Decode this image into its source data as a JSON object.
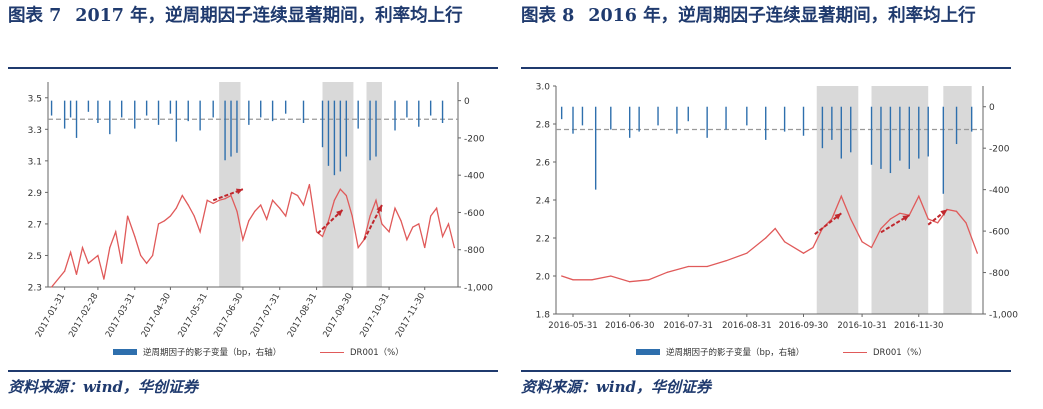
{
  "colors": {
    "title": "#1f3a6e",
    "bar": "#2e6fad",
    "line": "#e05a5a",
    "shade": "#d9d9d9",
    "arrow": "#c0272d",
    "dash": "#999999"
  },
  "source_text": "资料来源：wind，华创证券",
  "charts": [
    {
      "fig_label": "图表 7",
      "title": "2017 年，逆周期因子连续显著期间，利率均上行",
      "legend": {
        "bar": "逆周期因子的影子变量（bp，右轴）",
        "line": "DR001（%）"
      },
      "chart_data": {
        "type": "bar+line",
        "x_ticks": [
          "2017-01-31",
          "2017-02-28",
          "2017-03-31",
          "2017-04-30",
          "2017-05-31",
          "2017-06-30",
          "2017-07-31",
          "2017-08-31",
          "2017-09-30",
          "2017-10-31",
          "2017-11-30"
        ],
        "y_left": {
          "ticks": [
            "3.5",
            "3.3",
            "3.1",
            "2.9",
            "2.7",
            "2.5",
            "2.3"
          ],
          "range": [
            2.3,
            3.6
          ]
        },
        "y_right": {
          "ticks": [
            "0",
            "-200",
            "-400",
            "-600",
            "-800",
            "-1,000"
          ],
          "range": [
            -1000,
            100
          ]
        },
        "shaded_periods": [
          [
            "2017-06-10",
            "2017-06-28"
          ],
          [
            "2017-09-05",
            "2017-10-01"
          ],
          [
            "2017-10-12",
            "2017-10-25"
          ]
        ],
        "dashed_reference": -100,
        "series": [
          {
            "name": "DR001（%）",
            "type": "line",
            "values": [
              [
                "2017-01-20",
                2.3
              ],
              [
                "2017-01-31",
                2.4
              ],
              [
                "2017-02-05",
                2.52
              ],
              [
                "2017-02-10",
                2.38
              ],
              [
                "2017-02-15",
                2.55
              ],
              [
                "2017-02-20",
                2.45
              ],
              [
                "2017-02-28",
                2.5
              ],
              [
                "2017-03-05",
                2.35
              ],
              [
                "2017-03-10",
                2.55
              ],
              [
                "2017-03-15",
                2.65
              ],
              [
                "2017-03-20",
                2.45
              ],
              [
                "2017-03-25",
                2.75
              ],
              [
                "2017-03-31",
                2.62
              ],
              [
                "2017-04-05",
                2.5
              ],
              [
                "2017-04-10",
                2.45
              ],
              [
                "2017-04-15",
                2.5
              ],
              [
                "2017-04-20",
                2.7
              ],
              [
                "2017-04-25",
                2.72
              ],
              [
                "2017-04-30",
                2.75
              ],
              [
                "2017-05-05",
                2.8
              ],
              [
                "2017-05-10",
                2.88
              ],
              [
                "2017-05-15",
                2.82
              ],
              [
                "2017-05-20",
                2.75
              ],
              [
                "2017-05-25",
                2.65
              ],
              [
                "2017-05-31",
                2.85
              ],
              [
                "2017-06-05",
                2.83
              ],
              [
                "2017-06-10",
                2.85
              ],
              [
                "2017-06-15",
                2.86
              ],
              [
                "2017-06-20",
                2.88
              ],
              [
                "2017-06-25",
                2.78
              ],
              [
                "2017-06-30",
                2.6
              ],
              [
                "2017-07-05",
                2.72
              ],
              [
                "2017-07-10",
                2.78
              ],
              [
                "2017-07-15",
                2.82
              ],
              [
                "2017-07-20",
                2.73
              ],
              [
                "2017-07-25",
                2.85
              ],
              [
                "2017-07-31",
                2.8
              ],
              [
                "2017-08-05",
                2.75
              ],
              [
                "2017-08-10",
                2.9
              ],
              [
                "2017-08-15",
                2.88
              ],
              [
                "2017-08-20",
                2.82
              ],
              [
                "2017-08-25",
                2.95
              ],
              [
                "2017-08-31",
                2.65
              ],
              [
                "2017-09-05",
                2.62
              ],
              [
                "2017-09-10",
                2.72
              ],
              [
                "2017-09-15",
                2.85
              ],
              [
                "2017-09-20",
                2.92
              ],
              [
                "2017-09-25",
                2.88
              ],
              [
                "2017-09-30",
                2.75
              ],
              [
                "2017-10-05",
                2.55
              ],
              [
                "2017-10-10",
                2.6
              ],
              [
                "2017-10-15",
                2.75
              ],
              [
                "2017-10-20",
                2.85
              ],
              [
                "2017-10-25",
                2.7
              ],
              [
                "2017-10-31",
                2.65
              ],
              [
                "2017-11-05",
                2.8
              ],
              [
                "2017-11-10",
                2.72
              ],
              [
                "2017-11-15",
                2.6
              ],
              [
                "2017-11-20",
                2.68
              ],
              [
                "2017-11-25",
                2.7
              ],
              [
                "2017-11-30",
                2.55
              ],
              [
                "2017-12-05",
                2.75
              ],
              [
                "2017-12-10",
                2.8
              ],
              [
                "2017-12-15",
                2.62
              ],
              [
                "2017-12-20",
                2.7
              ],
              [
                "2017-12-25",
                2.55
              ]
            ]
          },
          {
            "name": "逆周期因子的影子变量（bp，右轴）",
            "type": "bar",
            "values": [
              [
                "2017-01-20",
                -80
              ],
              [
                "2017-01-31",
                -150
              ],
              [
                "2017-02-05",
                -90
              ],
              [
                "2017-02-10",
                -200
              ],
              [
                "2017-02-20",
                -60
              ],
              [
                "2017-02-28",
                -120
              ],
              [
                "2017-03-10",
                -180
              ],
              [
                "2017-03-20",
                -90
              ],
              [
                "2017-03-31",
                -150
              ],
              [
                "2017-04-10",
                -80
              ],
              [
                "2017-04-20",
                -130
              ],
              [
                "2017-04-30",
                -70
              ],
              [
                "2017-05-05",
                -220
              ],
              [
                "2017-05-15",
                -110
              ],
              [
                "2017-05-25",
                -160
              ],
              [
                "2017-06-05",
                -90
              ],
              [
                "2017-06-15",
                -320
              ],
              [
                "2017-06-20",
                -300
              ],
              [
                "2017-06-25",
                -280
              ],
              [
                "2017-07-05",
                -130
              ],
              [
                "2017-07-15",
                -90
              ],
              [
                "2017-07-25",
                -110
              ],
              [
                "2017-08-05",
                -70
              ],
              [
                "2017-08-20",
                -120
              ],
              [
                "2017-09-05",
                -250
              ],
              [
                "2017-09-10",
                -350
              ],
              [
                "2017-09-15",
                -400
              ],
              [
                "2017-09-20",
                -380
              ],
              [
                "2017-09-25",
                -300
              ],
              [
                "2017-10-05",
                -150
              ],
              [
                "2017-10-15",
                -320
              ],
              [
                "2017-10-20",
                -300
              ],
              [
                "2017-11-05",
                -160
              ],
              [
                "2017-11-15",
                -90
              ],
              [
                "2017-11-25",
                -140
              ],
              [
                "2017-12-05",
                -80
              ],
              [
                "2017-12-15",
                -120
              ]
            ]
          }
        ],
        "arrows": [
          [
            [
              "2017-06-05",
              2.85
            ],
            [
              "2017-06-30",
              2.92
            ]
          ],
          [
            [
              "2017-09-01",
              2.64
            ],
            [
              "2017-09-22",
              2.79
            ]
          ],
          [
            [
              "2017-10-10",
              2.6
            ],
            [
              "2017-10-25",
              2.82
            ]
          ]
        ]
      }
    },
    {
      "fig_label": "图表 8",
      "title": "2016 年，逆周期因子连续显著期间，利率均上行",
      "legend": {
        "bar": "逆周期因子的影子变量（bp，右轴）",
        "line": "DR001（%）"
      },
      "chart_data": {
        "type": "bar+line",
        "x_ticks": [
          "2016-05-31",
          "2016-06-30",
          "2016-07-31",
          "2016-08-31",
          "2016-09-30",
          "2016-10-31",
          "2016-11-30"
        ],
        "y_left": {
          "ticks": [
            "3.0",
            "2.8",
            "2.6",
            "2.4",
            "2.2",
            "2.0",
            "1.8"
          ],
          "range": [
            1.8,
            3.0
          ]
        },
        "y_right": {
          "ticks": [
            "0",
            "-200",
            "-400",
            "-600",
            "-800",
            "-1,000"
          ],
          "range": [
            -1000,
            100
          ]
        },
        "shaded_periods": [
          [
            "2016-10-07",
            "2016-10-29"
          ],
          [
            "2016-11-05",
            "2016-12-05"
          ],
          [
            "2016-12-13",
            "2016-12-28"
          ]
        ],
        "dashed_reference": -110,
        "series": [
          {
            "name": "DR001（%）",
            "type": "line",
            "values": [
              [
                "2016-05-25",
                2.0
              ],
              [
                "2016-05-31",
                1.98
              ],
              [
                "2016-06-10",
                1.98
              ],
              [
                "2016-06-20",
                2.0
              ],
              [
                "2016-06-30",
                1.97
              ],
              [
                "2016-07-10",
                1.98
              ],
              [
                "2016-07-20",
                2.02
              ],
              [
                "2016-07-31",
                2.05
              ],
              [
                "2016-08-10",
                2.05
              ],
              [
                "2016-08-20",
                2.08
              ],
              [
                "2016-08-31",
                2.12
              ],
              [
                "2016-09-10",
                2.2
              ],
              [
                "2016-09-15",
                2.25
              ],
              [
                "2016-09-20",
                2.18
              ],
              [
                "2016-09-30",
                2.12
              ],
              [
                "2016-10-05",
                2.15
              ],
              [
                "2016-10-10",
                2.25
              ],
              [
                "2016-10-15",
                2.3
              ],
              [
                "2016-10-20",
                2.42
              ],
              [
                "2016-10-25",
                2.3
              ],
              [
                "2016-10-31",
                2.18
              ],
              [
                "2016-11-05",
                2.15
              ],
              [
                "2016-11-10",
                2.25
              ],
              [
                "2016-11-15",
                2.3
              ],
              [
                "2016-11-20",
                2.33
              ],
              [
                "2016-11-25",
                2.32
              ],
              [
                "2016-11-30",
                2.42
              ],
              [
                "2016-12-05",
                2.3
              ],
              [
                "2016-12-10",
                2.28
              ],
              [
                "2016-12-15",
                2.35
              ],
              [
                "2016-12-20",
                2.34
              ],
              [
                "2016-12-25",
                2.28
              ],
              [
                "2016-12-31",
                2.12
              ]
            ]
          },
          {
            "name": "逆周期因子的影子变量（bp，右轴）",
            "type": "bar",
            "values": [
              [
                "2016-05-25",
                -60
              ],
              [
                "2016-05-31",
                -130
              ],
              [
                "2016-06-05",
                -90
              ],
              [
                "2016-06-12",
                -400
              ],
              [
                "2016-06-20",
                -110
              ],
              [
                "2016-06-30",
                -150
              ],
              [
                "2016-07-05",
                -120
              ],
              [
                "2016-07-15",
                -90
              ],
              [
                "2016-07-25",
                -130
              ],
              [
                "2016-07-31",
                -70
              ],
              [
                "2016-08-10",
                -150
              ],
              [
                "2016-08-20",
                -110
              ],
              [
                "2016-08-31",
                -90
              ],
              [
                "2016-09-10",
                -160
              ],
              [
                "2016-09-20",
                -120
              ],
              [
                "2016-09-30",
                -140
              ],
              [
                "2016-10-10",
                -200
              ],
              [
                "2016-10-15",
                -160
              ],
              [
                "2016-10-20",
                -250
              ],
              [
                "2016-10-25",
                -220
              ],
              [
                "2016-11-05",
                -280
              ],
              [
                "2016-11-10",
                -300
              ],
              [
                "2016-11-15",
                -320
              ],
              [
                "2016-11-20",
                -260
              ],
              [
                "2016-11-25",
                -300
              ],
              [
                "2016-11-30",
                -250
              ],
              [
                "2016-12-05",
                -240
              ],
              [
                "2016-12-13",
                -420
              ],
              [
                "2016-12-20",
                -180
              ],
              [
                "2016-12-28",
                -120
              ]
            ]
          }
        ],
        "arrows": [
          [
            [
              "2016-10-06",
              2.22
            ],
            [
              "2016-10-20",
              2.33
            ]
          ],
          [
            [
              "2016-11-10",
              2.23
            ],
            [
              "2016-11-25",
              2.32
            ]
          ],
          [
            [
              "2016-12-05",
              2.27
            ],
            [
              "2016-12-15",
              2.35
            ]
          ]
        ]
      }
    }
  ]
}
